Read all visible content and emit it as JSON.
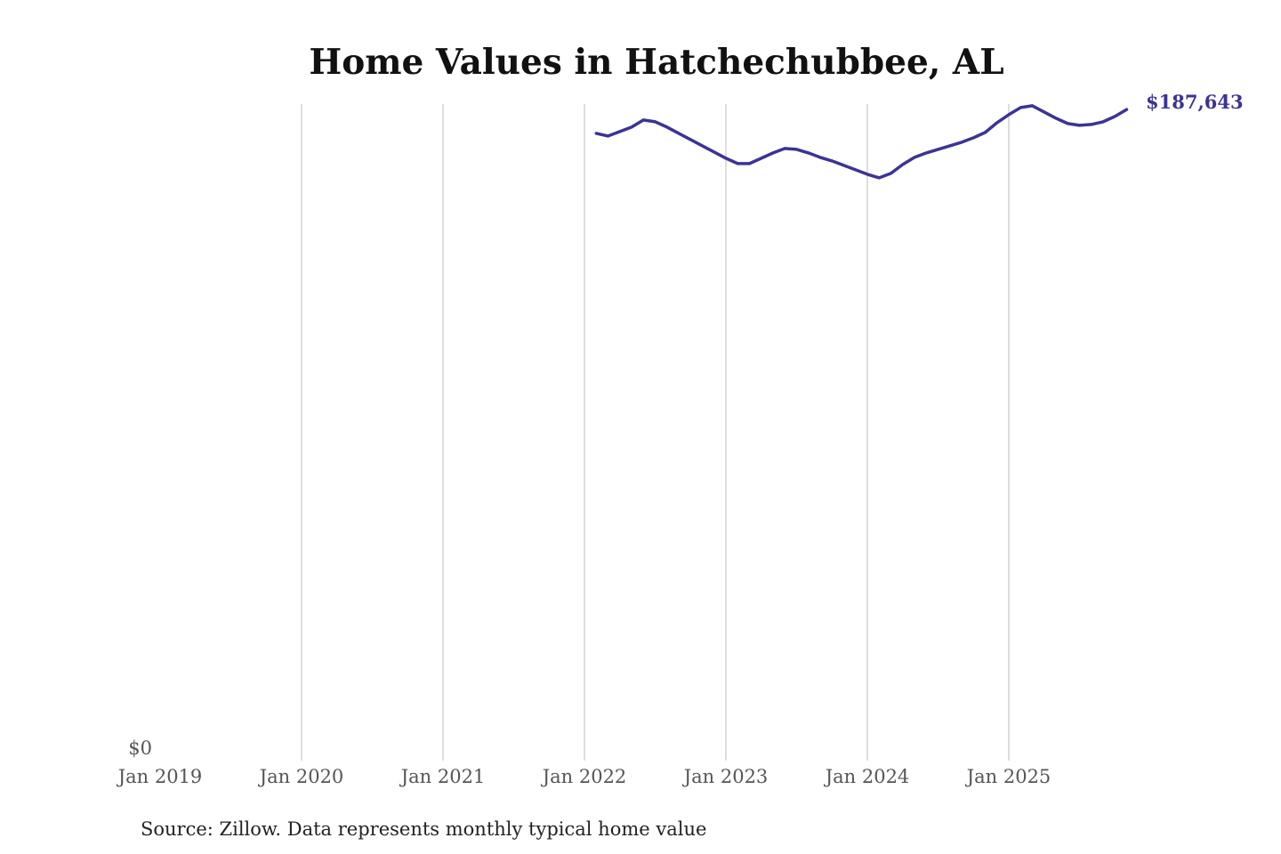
{
  "chart_data": {
    "type": "line",
    "title": "Home Values in Hatchechubbee, AL",
    "xlabel": "",
    "ylabel": "",
    "x_ticks": [
      "Jan 2019",
      "Jan 2020",
      "Jan 2021",
      "Jan 2022",
      "Jan 2023",
      "Jan 2024",
      "Jan 2025"
    ],
    "y_ticks": [
      "$0"
    ],
    "ylim": [
      0,
      189200
    ],
    "xlim": [
      "2019-01",
      "2025-11"
    ],
    "grid": "vertical",
    "end_label": "$187,643",
    "line_color": "#3b3494",
    "series": [
      {
        "name": "Typical home value",
        "x": [
          "2022-02",
          "2022-03",
          "2022-04",
          "2022-05",
          "2022-06",
          "2022-07",
          "2022-08",
          "2022-09",
          "2022-10",
          "2022-11",
          "2022-12",
          "2023-01",
          "2023-02",
          "2023-03",
          "2023-04",
          "2023-05",
          "2023-06",
          "2023-07",
          "2023-08",
          "2023-09",
          "2023-10",
          "2023-11",
          "2023-12",
          "2024-01",
          "2024-02",
          "2024-03",
          "2024-04",
          "2024-05",
          "2024-06",
          "2024-07",
          "2024-08",
          "2024-09",
          "2024-10",
          "2024-11",
          "2024-12",
          "2025-01",
          "2025-02",
          "2025-03",
          "2025-04",
          "2025-05",
          "2025-06",
          "2025-07",
          "2025-08",
          "2025-09",
          "2025-10",
          "2025-11"
        ],
        "values": [
          180760,
          180000,
          181280,
          182560,
          184610,
          184100,
          182560,
          180760,
          178960,
          177170,
          175380,
          173580,
          172040,
          172040,
          173580,
          175120,
          176400,
          176140,
          175120,
          173840,
          172810,
          171530,
          170250,
          168970,
          167940,
          169220,
          171790,
          173840,
          175120,
          176140,
          177170,
          178190,
          179480,
          181020,
          183840,
          186150,
          188200,
          188710,
          186920,
          185120,
          183580,
          183070,
          183330,
          184100,
          185640,
          187643
        ]
      }
    ],
    "source": "Source: Zillow. Data represents monthly typical home value"
  }
}
